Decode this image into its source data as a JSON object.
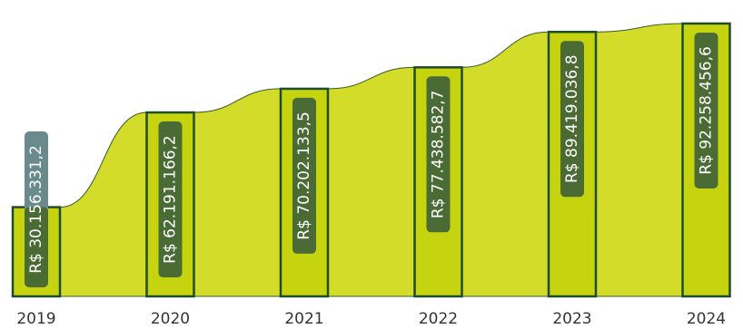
{
  "chart_data": {
    "type": "bar",
    "categories": [
      "2019",
      "2020",
      "2021",
      "2022",
      "2023",
      "2024"
    ],
    "values": [
      30156331.2,
      62191166.2,
      70202133.5,
      77438582.7,
      89419036.8,
      92258456.6
    ],
    "data_labels": [
      "R$ 30.156.331,2",
      "R$ 62.191.166,2",
      "R$ 70.202.133,5",
      "R$ 77.438.582,7",
      "R$ 89.419.036,8",
      "R$ 92.258.456,6"
    ],
    "title": "",
    "xlabel": "",
    "ylabel": "",
    "ylim": [
      0,
      95000000
    ],
    "grid": false,
    "legend": "none",
    "colors": {
      "bar_fill": "#c5d40f",
      "bar_stroke": "#1e4d2b",
      "area_fill": "#d4dc2a",
      "area_stroke": "#3a5a2a",
      "label_bg": "#4b6b35",
      "label_bg_outside": "#6a8a8e",
      "label_text": "#ffffff",
      "tick_text": "#333333"
    }
  }
}
